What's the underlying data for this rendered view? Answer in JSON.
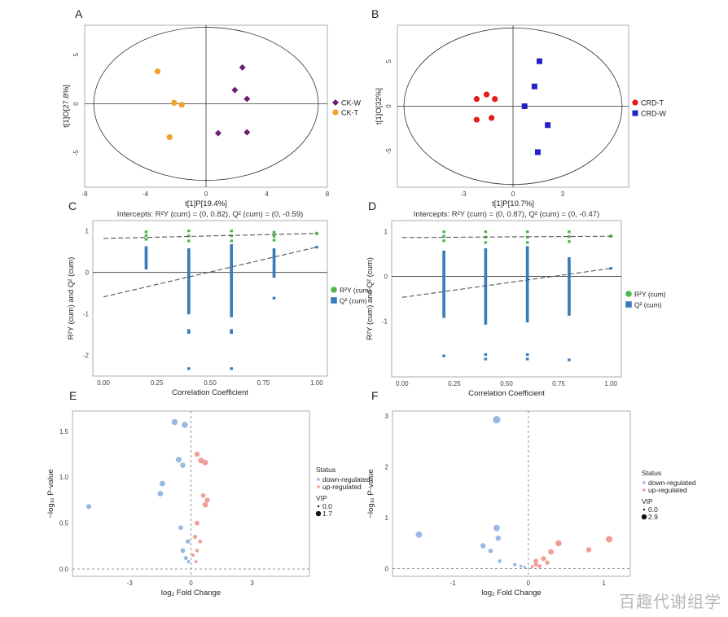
{
  "watermark": "百趣代谢组学",
  "colors": {
    "ck_w": "#6b1f73",
    "ck_t": "#f0a22a",
    "crd_t": "#e31b1b",
    "crd_w": "#2222c8",
    "r2": "#4cb84c",
    "q2": "#3a7cb8",
    "down": "#93b4e0",
    "up": "#ef9a92"
  },
  "chart_data": [
    {
      "panel": "A",
      "type": "scatter",
      "title": "",
      "xlabel": "t[1]P[19.4%]",
      "ylabel": "t[1]O[27.8%]",
      "xlim": [
        -8,
        8
      ],
      "ylim": [
        -8.5,
        8
      ],
      "xticks": [
        "-8",
        "-4",
        "0",
        "4",
        "8"
      ],
      "yticks": [
        "5",
        "0",
        "-5"
      ],
      "ellipse": {
        "rx": 7.4,
        "ry": 7.8
      },
      "series": [
        {
          "name": "CK-W",
          "marker": "diamond",
          "color": "#6b1f73",
          "points": [
            [
              2.4,
              3.7
            ],
            [
              1.9,
              1.4
            ],
            [
              2.7,
              0.5
            ],
            [
              0.8,
              -3.0
            ],
            [
              2.7,
              -2.9
            ]
          ]
        },
        {
          "name": "CK-T",
          "marker": "circle",
          "color": "#f0a22a",
          "points": [
            [
              -3.2,
              3.3
            ],
            [
              -2.1,
              0.1
            ],
            [
              -1.6,
              -0.1
            ],
            [
              -2.4,
              -3.4
            ]
          ]
        }
      ]
    },
    {
      "panel": "B",
      "type": "scatter",
      "title": "",
      "xlabel": "t[1]P[10.7%]",
      "ylabel": "t[1]O[32%]",
      "xlim": [
        -7,
        7
      ],
      "ylim": [
        -9,
        9
      ],
      "xticks": [
        "-3",
        "0",
        "3"
      ],
      "yticks": [
        "5",
        "0",
        "-5"
      ],
      "ellipse": {
        "rx": 6.6,
        "ry": 8.7
      },
      "series": [
        {
          "name": "CRD-T",
          "marker": "circle",
          "color": "#e31b1b",
          "points": [
            [
              -2.2,
              0.8
            ],
            [
              -1.6,
              1.3
            ],
            [
              -1.1,
              0.8
            ],
            [
              -2.2,
              -1.5
            ],
            [
              -1.3,
              -1.3
            ]
          ]
        },
        {
          "name": "CRD-W",
          "marker": "square",
          "color": "#2222c8",
          "points": [
            [
              1.6,
              5.0
            ],
            [
              1.3,
              2.2
            ],
            [
              0.7,
              0.0
            ],
            [
              2.1,
              -2.1
            ],
            [
              1.5,
              -5.1
            ]
          ]
        }
      ]
    },
    {
      "panel": "C",
      "type": "scatter",
      "title": "Intercepts: R²Y (cum) = (0, 0.82), Q² (cum) = (0, -0.59)",
      "xlabel": "Correlation Coefficient",
      "ylabel": "R²Y (cum) and Q² (cum)",
      "xlim": [
        -0.05,
        1.05
      ],
      "ylim": [
        -2.5,
        1.25
      ],
      "xticks": [
        "0.00",
        "0.25",
        "0.50",
        "0.75",
        "1.00"
      ],
      "yticks": [
        "1",
        "0",
        "-1",
        "-2"
      ],
      "intercepts": {
        "r2": [
          0,
          0.82
        ],
        "q2": [
          0,
          -0.59
        ]
      },
      "series": [
        {
          "name": "R²Y (cum)",
          "color": "#4cb84c",
          "columns": [
            {
              "x": 0.2,
              "min": 0.8,
              "max": 0.98
            },
            {
              "x": 0.4,
              "min": 0.76,
              "max": 1.0
            },
            {
              "x": 0.6,
              "min": 0.76,
              "max": 1.0
            },
            {
              "x": 0.8,
              "min": 0.78,
              "max": 0.97
            }
          ],
          "extra": [
            [
              1.0,
              0.94
            ]
          ]
        },
        {
          "name": "Q² (cum)",
          "color": "#3a7cb8",
          "columns": [
            {
              "x": 0.2,
              "min": 0.1,
              "max": 0.6
            },
            {
              "x": 0.4,
              "min": -0.98,
              "max": 0.55
            },
            {
              "x": 0.6,
              "min": -1.05,
              "max": 0.65
            },
            {
              "x": 0.8,
              "min": -0.1,
              "max": 0.55
            },
            {
              "x": 0.4,
              "min": -1.45,
              "max": -1.4
            },
            {
              "x": 0.6,
              "min": -1.45,
              "max": -1.4
            }
          ],
          "extra": [
            [
              0.4,
              -2.32
            ],
            [
              0.6,
              -2.32
            ],
            [
              0.8,
              -0.62
            ],
            [
              1.0,
              0.61
            ]
          ]
        }
      ]
    },
    {
      "panel": "D",
      "type": "scatter",
      "title": "Intercepts: R²Y (cum) = (0, 0.87), Q² (cum) = (0, -0.47)",
      "xlabel": "Correlation Coefficient",
      "ylabel": "R²Y (cum) and Q² (cum)",
      "xlim": [
        -0.05,
        1.05
      ],
      "ylim": [
        -2.25,
        1.25
      ],
      "xticks": [
        "0.00",
        "0.25",
        "0.50",
        "0.75",
        "1.00"
      ],
      "yticks": [
        "1",
        "0",
        "-1"
      ],
      "intercepts": {
        "r2": [
          0,
          0.87
        ],
        "q2": [
          0,
          -0.47
        ]
      },
      "series": [
        {
          "name": "R²Y (cum)",
          "color": "#4cb84c",
          "columns": [
            {
              "x": 0.2,
              "min": 0.8,
              "max": 1.0
            },
            {
              "x": 0.4,
              "min": 0.76,
              "max": 1.0
            },
            {
              "x": 0.6,
              "min": 0.76,
              "max": 1.0
            },
            {
              "x": 0.8,
              "min": 0.78,
              "max": 1.0
            }
          ],
          "extra": [
            [
              1.0,
              0.9
            ]
          ]
        },
        {
          "name": "Q² (cum)",
          "color": "#3a7cb8",
          "columns": [
            {
              "x": 0.2,
              "min": -0.9,
              "max": 0.55
            },
            {
              "x": 0.4,
              "min": -1.05,
              "max": 0.6
            },
            {
              "x": 0.6,
              "min": -1.0,
              "max": 0.65
            },
            {
              "x": 0.8,
              "min": -0.85,
              "max": 0.4
            }
          ],
          "extra": [
            [
              0.2,
              -1.78
            ],
            [
              0.4,
              -1.75
            ],
            [
              0.4,
              -1.85
            ],
            [
              0.6,
              -1.75
            ],
            [
              0.6,
              -1.85
            ],
            [
              0.8,
              -1.87
            ],
            [
              1.0,
              0.18
            ]
          ]
        }
      ]
    },
    {
      "panel": "E",
      "type": "scatter",
      "title": "",
      "xlabel": "log₂ Fold Change",
      "ylabel": "−log₁₀ P-value",
      "xlim": [
        -5.8,
        5.8
      ],
      "ylim": [
        -0.08,
        1.72
      ],
      "xticks": [
        "-3",
        "0",
        "3"
      ],
      "yticks": [
        "0.0",
        "0.5",
        "1.0",
        "1.5"
      ],
      "threshold_y": 0.0,
      "threshold_x": 0,
      "legend": {
        "status_title": "Status",
        "down": "down-regulated",
        "up": "up-regulated",
        "vip_title": "VIP",
        "vip_min": "0.0",
        "vip_max": "1.7"
      },
      "series": [
        {
          "name": "down-regulated",
          "color": "#93b4e0",
          "points": [
            [
              -5.0,
              0.68,
              1.1
            ],
            [
              -0.8,
              1.6,
              1.5
            ],
            [
              -0.3,
              1.57,
              1.5
            ],
            [
              -0.6,
              1.19,
              1.4
            ],
            [
              -0.4,
              1.13,
              1.2
            ],
            [
              -1.4,
              0.93,
              1.3
            ],
            [
              -1.5,
              0.82,
              1.3
            ],
            [
              -0.5,
              0.45,
              1.0
            ],
            [
              -0.15,
              0.3,
              0.9
            ],
            [
              -0.4,
              0.2,
              1.0
            ],
            [
              -0.25,
              0.12,
              0.8
            ],
            [
              -0.12,
              0.08,
              0.5
            ]
          ]
        },
        {
          "name": "up-regulated",
          "color": "#ef9a92",
          "points": [
            [
              0.3,
              1.25,
              1.2
            ],
            [
              0.5,
              1.18,
              1.4
            ],
            [
              0.7,
              1.16,
              1.3
            ],
            [
              0.6,
              0.8,
              1.0
            ],
            [
              0.8,
              0.75,
              1.1
            ],
            [
              0.7,
              0.7,
              1.3
            ],
            [
              0.3,
              0.5,
              1.0
            ],
            [
              0.2,
              0.35,
              0.8
            ],
            [
              0.45,
              0.3,
              0.7
            ],
            [
              0.3,
              0.2,
              0.6
            ],
            [
              0.1,
              0.15,
              0.5
            ],
            [
              0.25,
              0.08,
              0.4
            ]
          ]
        }
      ]
    },
    {
      "panel": "F",
      "type": "scatter",
      "title": "",
      "xlabel": "log₂ Fold Change",
      "ylabel": "−log₁₀ P-value",
      "xlim": [
        -1.8,
        1.35
      ],
      "ylim": [
        -0.15,
        3.1
      ],
      "xticks": [
        "-1",
        "0",
        "1"
      ],
      "yticks": [
        "0",
        "1",
        "2",
        "3"
      ],
      "threshold_y": 0.0,
      "threshold_x": 0,
      "legend": {
        "status_title": "Status",
        "down": "down-regulated",
        "up": "up-regulated",
        "vip_title": "VIP",
        "vip_min": "0.0",
        "vip_max": "2.9"
      },
      "series": [
        {
          "name": "down-regulated",
          "color": "#93b4e0",
          "points": [
            [
              -0.42,
              2.93,
              2.0
            ],
            [
              -1.45,
              0.67,
              1.6
            ],
            [
              -0.42,
              0.8,
              1.6
            ],
            [
              -0.4,
              0.6,
              1.2
            ],
            [
              -0.6,
              0.45,
              1.2
            ],
            [
              -0.5,
              0.35,
              0.9
            ],
            [
              -0.38,
              0.15,
              0.6
            ],
            [
              -0.18,
              0.08,
              0.5
            ],
            [
              -0.1,
              0.05,
              0.4
            ],
            [
              -0.05,
              0.03,
              0.3
            ]
          ]
        },
        {
          "name": "up-regulated",
          "color": "#ef9a92",
          "points": [
            [
              1.07,
              0.58,
              1.7
            ],
            [
              0.8,
              0.37,
              1.2
            ],
            [
              0.4,
              0.5,
              1.5
            ],
            [
              0.3,
              0.33,
              1.3
            ],
            [
              0.2,
              0.2,
              1.1
            ],
            [
              0.1,
              0.15,
              1.0
            ],
            [
              0.1,
              0.08,
              0.8
            ],
            [
              0.15,
              0.05,
              0.7
            ],
            [
              0.25,
              0.12,
              0.9
            ],
            [
              0.05,
              0.04,
              0.4
            ]
          ]
        }
      ]
    }
  ]
}
